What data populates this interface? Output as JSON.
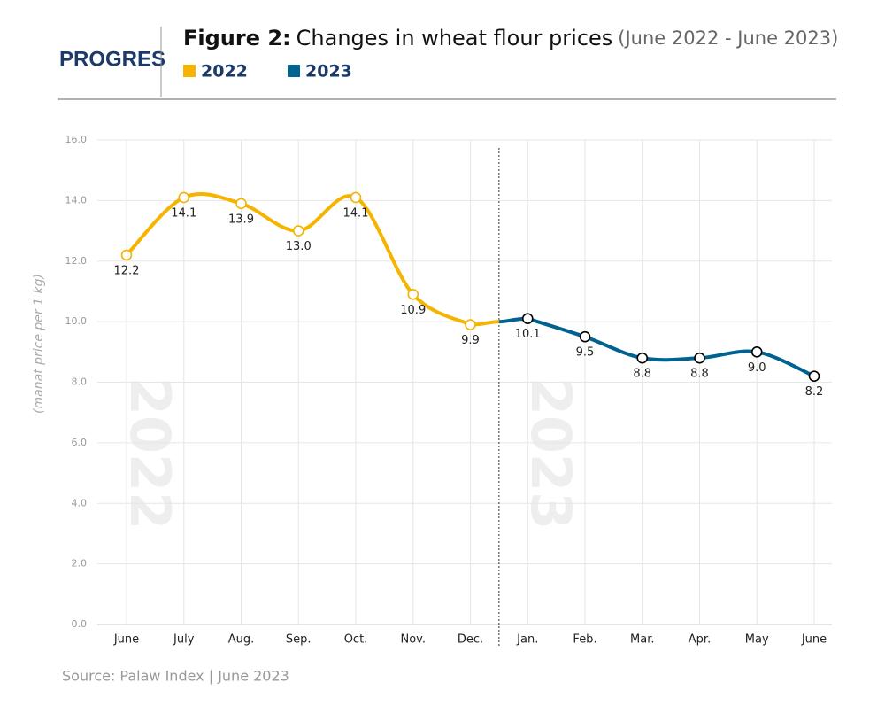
{
  "logo": "PROGRES",
  "source": "Source: Palaw Index | June 2023",
  "chart_data": {
    "type": "line",
    "title_label": "Figure 2:",
    "title": "Changes in wheat flour prices",
    "subtitle": "(June 2022 - June 2023)",
    "y_label": "(manat price per 1 kg)",
    "categories": [
      "June",
      "July",
      "Aug.",
      "Sep.",
      "Oct.",
      "Nov.",
      "Dec.",
      "Jan.",
      "Feb.",
      "Mar.",
      "Apr.",
      "May",
      "June"
    ],
    "series": [
      {
        "name": "2022",
        "color": "#f5b400",
        "marker_stroke": "#f5b400",
        "values": [
          12.2,
          14.1,
          13.9,
          13.0,
          14.1,
          10.9,
          9.9,
          null,
          null,
          null,
          null,
          null,
          null
        ],
        "value_labels": [
          "12.2",
          "14.1",
          "13.9",
          "13.0",
          "14.1",
          "10.9",
          "9.9",
          null,
          null,
          null,
          null,
          null,
          null
        ]
      },
      {
        "name": "2023",
        "color": "#00628f",
        "marker_stroke": "#000000",
        "values": [
          null,
          null,
          null,
          null,
          null,
          null,
          null,
          10.1,
          9.5,
          8.8,
          8.8,
          9.0,
          8.2
        ],
        "value_labels": [
          null,
          null,
          null,
          null,
          null,
          null,
          null,
          "10.1",
          "9.5",
          "8.8",
          "8.8",
          "9.0",
          "8.2"
        ]
      }
    ],
    "ylim": [
      0,
      16
    ],
    "yticks": [
      {
        "value": 0,
        "label": "0.0"
      },
      {
        "value": 2,
        "label": "2.0"
      },
      {
        "value": 4,
        "label": "4.0"
      },
      {
        "value": 6,
        "label": "6.0"
      },
      {
        "value": 8,
        "label": "8.0"
      },
      {
        "value": 10,
        "label": "10.0"
      },
      {
        "value": 12,
        "label": "12.0"
      },
      {
        "value": 14,
        "label": "14.0"
      },
      {
        "value": 16,
        "label": "16.0"
      }
    ],
    "grid": true
  }
}
